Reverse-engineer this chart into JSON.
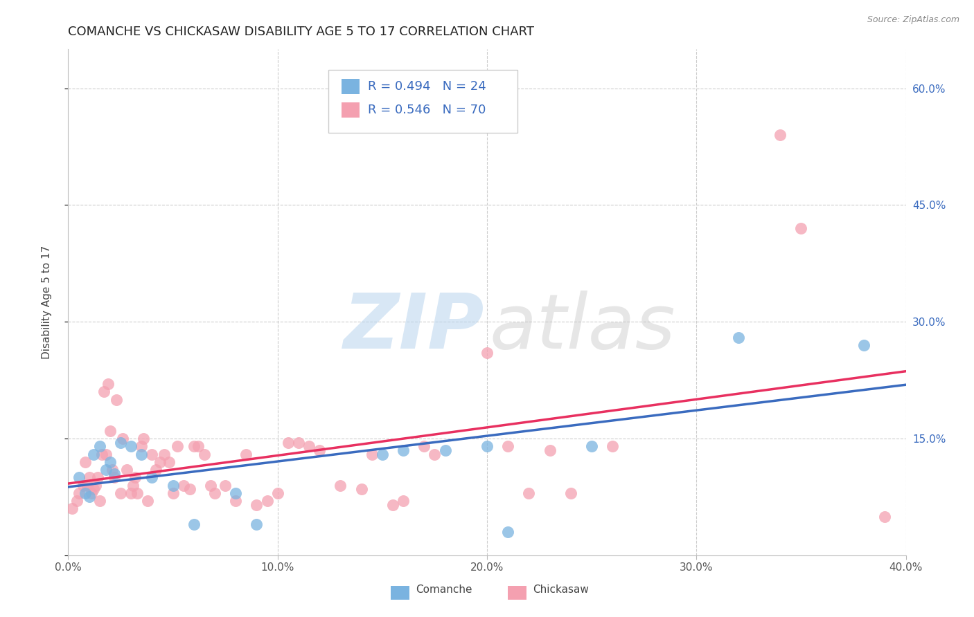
{
  "title": "COMANCHE VS CHICKASAW DISABILITY AGE 5 TO 17 CORRELATION CHART",
  "source": "Source: ZipAtlas.com",
  "ylabel": "Disability Age 5 to 17",
  "xlim": [
    0.0,
    0.4
  ],
  "ylim": [
    0.0,
    0.65
  ],
  "xticks": [
    0.0,
    0.1,
    0.2,
    0.3,
    0.4
  ],
  "yticks_right": [
    0.0,
    0.15,
    0.3,
    0.45,
    0.6
  ],
  "ytick_labels_right": [
    "",
    "15.0%",
    "30.0%",
    "45.0%",
    "60.0%"
  ],
  "xtick_labels": [
    "0.0%",
    "10.0%",
    "20.0%",
    "30.0%",
    "40.0%"
  ],
  "grid_color": "#cccccc",
  "bg_color": "#ffffff",
  "comanche_color": "#7ab3e0",
  "chickasaw_color": "#f4a0b0",
  "comanche_line_color": "#3a6bbf",
  "chickasaw_line_color": "#e83060",
  "label_color": "#3a6bbf",
  "comanche_R": 0.494,
  "comanche_N": 24,
  "chickasaw_R": 0.546,
  "chickasaw_N": 70,
  "comanche_points": [
    [
      0.005,
      0.1
    ],
    [
      0.008,
      0.08
    ],
    [
      0.01,
      0.075
    ],
    [
      0.012,
      0.13
    ],
    [
      0.015,
      0.14
    ],
    [
      0.018,
      0.11
    ],
    [
      0.02,
      0.12
    ],
    [
      0.022,
      0.105
    ],
    [
      0.025,
      0.145
    ],
    [
      0.03,
      0.14
    ],
    [
      0.035,
      0.13
    ],
    [
      0.04,
      0.1
    ],
    [
      0.05,
      0.09
    ],
    [
      0.06,
      0.04
    ],
    [
      0.08,
      0.08
    ],
    [
      0.09,
      0.04
    ],
    [
      0.15,
      0.13
    ],
    [
      0.16,
      0.135
    ],
    [
      0.18,
      0.135
    ],
    [
      0.2,
      0.14
    ],
    [
      0.21,
      0.03
    ],
    [
      0.25,
      0.14
    ],
    [
      0.32,
      0.28
    ],
    [
      0.38,
      0.27
    ]
  ],
  "chickasaw_points": [
    [
      0.002,
      0.06
    ],
    [
      0.004,
      0.07
    ],
    [
      0.005,
      0.08
    ],
    [
      0.007,
      0.09
    ],
    [
      0.008,
      0.12
    ],
    [
      0.009,
      0.09
    ],
    [
      0.01,
      0.1
    ],
    [
      0.011,
      0.08
    ],
    [
      0.012,
      0.085
    ],
    [
      0.013,
      0.09
    ],
    [
      0.014,
      0.1
    ],
    [
      0.015,
      0.07
    ],
    [
      0.016,
      0.13
    ],
    [
      0.017,
      0.21
    ],
    [
      0.018,
      0.13
    ],
    [
      0.019,
      0.22
    ],
    [
      0.02,
      0.16
    ],
    [
      0.021,
      0.11
    ],
    [
      0.022,
      0.1
    ],
    [
      0.023,
      0.2
    ],
    [
      0.025,
      0.08
    ],
    [
      0.026,
      0.15
    ],
    [
      0.028,
      0.11
    ],
    [
      0.03,
      0.08
    ],
    [
      0.031,
      0.09
    ],
    [
      0.032,
      0.1
    ],
    [
      0.033,
      0.08
    ],
    [
      0.035,
      0.14
    ],
    [
      0.036,
      0.15
    ],
    [
      0.038,
      0.07
    ],
    [
      0.04,
      0.13
    ],
    [
      0.042,
      0.11
    ],
    [
      0.044,
      0.12
    ],
    [
      0.046,
      0.13
    ],
    [
      0.048,
      0.12
    ],
    [
      0.05,
      0.08
    ],
    [
      0.052,
      0.14
    ],
    [
      0.055,
      0.09
    ],
    [
      0.058,
      0.085
    ],
    [
      0.06,
      0.14
    ],
    [
      0.062,
      0.14
    ],
    [
      0.065,
      0.13
    ],
    [
      0.068,
      0.09
    ],
    [
      0.07,
      0.08
    ],
    [
      0.075,
      0.09
    ],
    [
      0.08,
      0.07
    ],
    [
      0.085,
      0.13
    ],
    [
      0.09,
      0.065
    ],
    [
      0.095,
      0.07
    ],
    [
      0.1,
      0.08
    ],
    [
      0.105,
      0.145
    ],
    [
      0.11,
      0.145
    ],
    [
      0.115,
      0.14
    ],
    [
      0.12,
      0.135
    ],
    [
      0.13,
      0.09
    ],
    [
      0.14,
      0.085
    ],
    [
      0.145,
      0.13
    ],
    [
      0.155,
      0.065
    ],
    [
      0.16,
      0.07
    ],
    [
      0.17,
      0.14
    ],
    [
      0.175,
      0.13
    ],
    [
      0.2,
      0.26
    ],
    [
      0.21,
      0.14
    ],
    [
      0.22,
      0.08
    ],
    [
      0.23,
      0.135
    ],
    [
      0.24,
      0.08
    ],
    [
      0.26,
      0.14
    ],
    [
      0.34,
      0.54
    ],
    [
      0.35,
      0.42
    ],
    [
      0.39,
      0.05
    ]
  ],
  "title_fontsize": 13,
  "axis_label_fontsize": 11,
  "tick_fontsize": 11,
  "legend_fontsize": 13
}
